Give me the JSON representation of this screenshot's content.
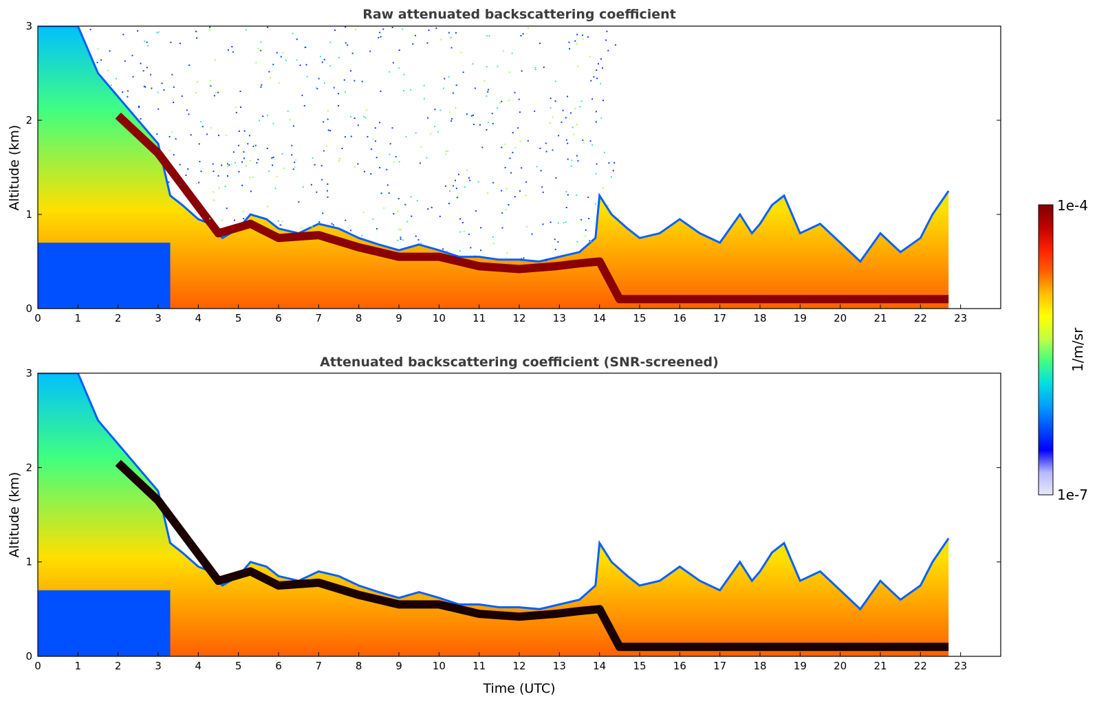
{
  "chart_data": [
    {
      "type": "heatmap",
      "title": "Raw attenuated backscattering coefficient",
      "xlabel": "",
      "ylabel": "Altitude (km)",
      "xlim": [
        0,
        24
      ],
      "ylim": [
        0,
        3
      ],
      "xticks": [
        "0",
        "1",
        "2",
        "3",
        "4",
        "5",
        "6",
        "7",
        "8",
        "9",
        "10",
        "11",
        "12",
        "13",
        "14",
        "15",
        "16",
        "17",
        "18",
        "19",
        "20",
        "21",
        "22",
        "23"
      ],
      "yticks": [
        "0",
        "1",
        "2",
        "3"
      ],
      "data_end_hour": 22.7,
      "noise_speckle": "high",
      "layer_top_km": [
        [
          0,
          3.0
        ],
        [
          0.5,
          3.0
        ],
        [
          1.0,
          3.0
        ],
        [
          1.5,
          2.5
        ],
        [
          2.0,
          2.25
        ],
        [
          2.5,
          2.0
        ],
        [
          3.0,
          1.75
        ],
        [
          3.3,
          1.2
        ],
        [
          3.6,
          1.1
        ],
        [
          4.0,
          0.95
        ],
        [
          4.3,
          0.9
        ],
        [
          4.6,
          0.75
        ],
        [
          5.0,
          0.85
        ],
        [
          5.3,
          1.0
        ],
        [
          5.7,
          0.95
        ],
        [
          6.0,
          0.85
        ],
        [
          6.5,
          0.8
        ],
        [
          7.0,
          0.9
        ],
        [
          7.5,
          0.85
        ],
        [
          8.0,
          0.75
        ],
        [
          8.5,
          0.68
        ],
        [
          9.0,
          0.62
        ],
        [
          9.5,
          0.68
        ],
        [
          10.0,
          0.62
        ],
        [
          10.5,
          0.55
        ],
        [
          11.0,
          0.55
        ],
        [
          11.5,
          0.52
        ],
        [
          12.0,
          0.52
        ],
        [
          12.5,
          0.5
        ],
        [
          13.0,
          0.55
        ],
        [
          13.5,
          0.6
        ],
        [
          13.9,
          0.75
        ],
        [
          14.0,
          1.2
        ],
        [
          14.3,
          1.0
        ],
        [
          14.7,
          0.85
        ],
        [
          15.0,
          0.75
        ],
        [
          15.5,
          0.8
        ],
        [
          16.0,
          0.95
        ],
        [
          16.5,
          0.8
        ],
        [
          17.0,
          0.7
        ],
        [
          17.5,
          1.0
        ],
        [
          17.8,
          0.8
        ],
        [
          18.0,
          0.9
        ],
        [
          18.3,
          1.1
        ],
        [
          18.6,
          1.2
        ],
        [
          19.0,
          0.8
        ],
        [
          19.5,
          0.9
        ],
        [
          20.0,
          0.7
        ],
        [
          20.5,
          0.5
        ],
        [
          21.0,
          0.8
        ],
        [
          21.5,
          0.6
        ],
        [
          22.0,
          0.75
        ],
        [
          22.3,
          1.0
        ],
        [
          22.7,
          1.25
        ]
      ],
      "peak_layer_km": [
        [
          2.0,
          2.05
        ],
        [
          2.5,
          1.85
        ],
        [
          3.0,
          1.65
        ],
        [
          4.5,
          0.8
        ],
        [
          5.3,
          0.9
        ],
        [
          6.0,
          0.75
        ],
        [
          7.0,
          0.78
        ],
        [
          8.0,
          0.65
        ],
        [
          9.0,
          0.55
        ],
        [
          10.0,
          0.55
        ],
        [
          11.0,
          0.45
        ],
        [
          12.0,
          0.42
        ],
        [
          12.9,
          0.45
        ],
        [
          13.5,
          0.48
        ],
        [
          14.0,
          0.5
        ],
        [
          14.5,
          0.1
        ],
        [
          22.7,
          0.1
        ]
      ]
    },
    {
      "type": "heatmap",
      "title": "Attenuated backscattering coefficient (SNR-screened)",
      "xlabel": "Time (UTC)",
      "ylabel": "Altitude (km)",
      "xlim": [
        0,
        24
      ],
      "ylim": [
        0,
        3
      ],
      "xticks": [
        "0",
        "1",
        "2",
        "3",
        "4",
        "5",
        "6",
        "7",
        "8",
        "9",
        "10",
        "11",
        "12",
        "13",
        "14",
        "15",
        "16",
        "17",
        "18",
        "19",
        "20",
        "21",
        "22",
        "23"
      ],
      "yticks": [
        "0",
        "1",
        "2",
        "3"
      ],
      "data_end_hour": 22.7,
      "noise_speckle": "none",
      "layer_top_km": [
        [
          0,
          3.0
        ],
        [
          0.5,
          3.0
        ],
        [
          1.0,
          3.0
        ],
        [
          1.5,
          2.5
        ],
        [
          2.0,
          2.25
        ],
        [
          2.5,
          2.0
        ],
        [
          3.0,
          1.75
        ],
        [
          3.3,
          1.2
        ],
        [
          3.6,
          1.1
        ],
        [
          4.0,
          0.95
        ],
        [
          4.3,
          0.9
        ],
        [
          4.6,
          0.75
        ],
        [
          5.0,
          0.85
        ],
        [
          5.3,
          1.0
        ],
        [
          5.7,
          0.95
        ],
        [
          6.0,
          0.85
        ],
        [
          6.5,
          0.8
        ],
        [
          7.0,
          0.9
        ],
        [
          7.5,
          0.85
        ],
        [
          8.0,
          0.75
        ],
        [
          8.5,
          0.68
        ],
        [
          9.0,
          0.62
        ],
        [
          9.5,
          0.68
        ],
        [
          10.0,
          0.62
        ],
        [
          10.5,
          0.55
        ],
        [
          11.0,
          0.55
        ],
        [
          11.5,
          0.52
        ],
        [
          12.0,
          0.52
        ],
        [
          12.5,
          0.5
        ],
        [
          13.0,
          0.55
        ],
        [
          13.5,
          0.6
        ],
        [
          13.9,
          0.75
        ],
        [
          14.0,
          1.2
        ],
        [
          14.3,
          1.0
        ],
        [
          14.7,
          0.85
        ],
        [
          15.0,
          0.75
        ],
        [
          15.5,
          0.8
        ],
        [
          16.0,
          0.95
        ],
        [
          16.5,
          0.8
        ],
        [
          17.0,
          0.7
        ],
        [
          17.5,
          1.0
        ],
        [
          17.8,
          0.8
        ],
        [
          18.0,
          0.9
        ],
        [
          18.3,
          1.1
        ],
        [
          18.6,
          1.2
        ],
        [
          19.0,
          0.8
        ],
        [
          19.5,
          0.9
        ],
        [
          20.0,
          0.7
        ],
        [
          20.5,
          0.5
        ],
        [
          21.0,
          0.8
        ],
        [
          21.5,
          0.6
        ],
        [
          22.0,
          0.75
        ],
        [
          22.3,
          1.0
        ],
        [
          22.7,
          1.25
        ]
      ],
      "peak_layer_km": [
        [
          2.0,
          2.05
        ],
        [
          2.5,
          1.85
        ],
        [
          3.0,
          1.65
        ],
        [
          4.5,
          0.8
        ],
        [
          5.3,
          0.9
        ],
        [
          6.0,
          0.75
        ],
        [
          7.0,
          0.78
        ],
        [
          8.0,
          0.65
        ],
        [
          9.0,
          0.55
        ],
        [
          10.0,
          0.55
        ],
        [
          11.0,
          0.45
        ],
        [
          12.0,
          0.42
        ],
        [
          12.9,
          0.45
        ],
        [
          13.5,
          0.48
        ],
        [
          14.0,
          0.5
        ],
        [
          14.5,
          0.1
        ],
        [
          22.7,
          0.1
        ]
      ]
    }
  ],
  "colorbar": {
    "label": "1/m/sr",
    "max_label": "1e-4",
    "min_label": "1e-7",
    "range": [
      1e-07,
      0.0001
    ],
    "scale": "log",
    "colormap": [
      "#e8e8f8",
      "#b8b8ff",
      "#0000ff",
      "#0050ff",
      "#00a0ff",
      "#00e0e0",
      "#40ff80",
      "#c0ff40",
      "#ffff00",
      "#ffc000",
      "#ff6000",
      "#ff2000",
      "#c00000",
      "#800000"
    ]
  }
}
